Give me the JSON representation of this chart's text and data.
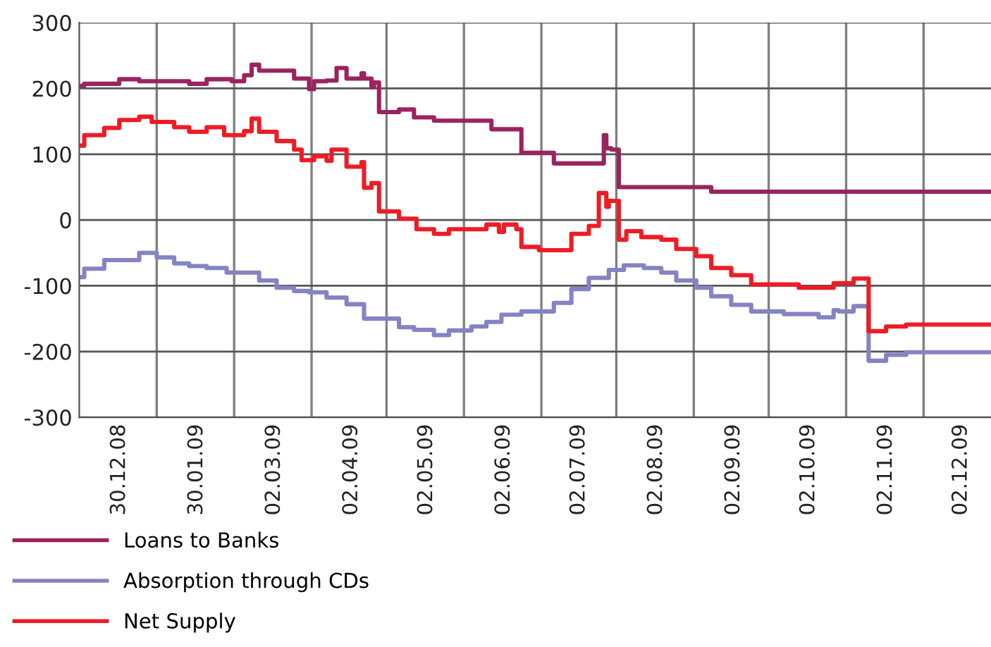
{
  "chart_data": {
    "type": "step",
    "ylim": [
      -300,
      300
    ],
    "yticks": [
      -300,
      -200,
      -100,
      0,
      100,
      200,
      300
    ],
    "xlim": [
      "2008-12-14",
      "2009-12-14"
    ],
    "xticks": [
      {
        "value": "2008-12-30",
        "label": "30.12.08"
      },
      {
        "value": "2009-01-14",
        "label": null
      },
      {
        "value": "2009-01-30",
        "label": "30.01.09"
      },
      {
        "value": "2009-02-14",
        "label": null
      },
      {
        "value": "2009-03-02",
        "label": "02.03.09"
      },
      {
        "value": "2009-03-17",
        "label": null
      },
      {
        "value": "2009-04-02",
        "label": "02.04.09"
      },
      {
        "value": "2009-04-16",
        "label": null
      },
      {
        "value": "2009-05-02",
        "label": "02.05.09"
      },
      {
        "value": "2009-05-17",
        "label": null
      },
      {
        "value": "2009-06-02",
        "label": "02.06.09"
      },
      {
        "value": "2009-06-17",
        "label": null
      },
      {
        "value": "2009-07-02",
        "label": "02.07.09"
      },
      {
        "value": "2009-07-17",
        "label": null
      },
      {
        "value": "2009-08-02",
        "label": "02.08.09"
      },
      {
        "value": "2009-08-17",
        "label": null
      },
      {
        "value": "2009-09-02",
        "label": "02.09.09"
      },
      {
        "value": "2009-09-16",
        "label": null
      },
      {
        "value": "2009-10-02",
        "label": "02.10.09"
      },
      {
        "value": "2009-10-17",
        "label": null
      },
      {
        "value": "2009-11-02",
        "label": "02.11.09"
      },
      {
        "value": "2009-11-17",
        "label": null
      },
      {
        "value": "2009-12-02",
        "label": "02.12.09"
      }
    ],
    "grid": true,
    "legend": "bottom",
    "line_style": "solid",
    "series": [
      {
        "name": "Loans to Banks",
        "color": "#9b2360",
        "x": [
          "2008-12-15",
          "2008-12-16",
          "2008-12-30",
          "2009-01-07",
          "2009-01-27",
          "2009-02-03",
          "2009-02-13",
          "2009-02-18",
          "2009-02-21",
          "2009-02-24",
          "2009-03-10",
          "2009-03-16",
          "2009-03-18",
          "2009-03-23",
          "2009-03-27",
          "2009-03-31",
          "2009-04-06",
          "2009-04-07",
          "2009-04-10",
          "2009-04-11",
          "2009-04-13",
          "2009-04-21",
          "2009-04-27",
          "2009-05-05",
          "2009-05-28",
          "2009-06-09",
          "2009-06-22",
          "2009-07-12",
          "2009-07-13",
          "2009-07-15",
          "2009-07-18",
          "2009-08-24",
          "2009-12-14"
        ],
        "values": [
          204,
          207,
          214,
          211,
          207,
          214,
          211,
          220,
          236,
          227,
          215,
          199,
          211,
          212,
          231,
          215,
          223,
          215,
          202,
          209,
          164,
          168,
          156,
          151,
          138,
          102,
          86,
          129,
          109,
          107,
          50,
          43,
          43
        ]
      },
      {
        "name": "Absorption through CDs",
        "color": "#8583c4",
        "x": [
          "2008-12-15",
          "2008-12-16",
          "2008-12-24",
          "2009-01-07",
          "2009-01-14",
          "2009-01-21",
          "2009-01-27",
          "2009-02-03",
          "2009-02-11",
          "2009-02-24",
          "2009-03-03",
          "2009-03-10",
          "2009-03-16",
          "2009-03-23",
          "2009-03-31",
          "2009-04-07",
          "2009-04-21",
          "2009-04-27",
          "2009-05-05",
          "2009-05-11",
          "2009-05-20",
          "2009-05-26",
          "2009-06-01",
          "2009-06-09",
          "2009-06-22",
          "2009-06-29",
          "2009-07-06",
          "2009-07-14",
          "2009-07-20",
          "2009-07-28",
          "2009-08-04",
          "2009-08-10",
          "2009-08-18",
          "2009-08-24",
          "2009-09-01",
          "2009-09-09",
          "2009-09-22",
          "2009-10-06",
          "2009-10-12",
          "2009-10-14",
          "2009-10-20",
          "2009-10-26",
          "2009-11-02",
          "2009-11-10",
          "2009-12-14"
        ],
        "values": [
          -87,
          -74,
          -61,
          -50,
          -57,
          -66,
          -70,
          -73,
          -80,
          -92,
          -103,
          -108,
          -110,
          -118,
          -128,
          -150,
          -163,
          -167,
          -175,
          -168,
          -162,
          -155,
          -144,
          -139,
          -126,
          -105,
          -88,
          -76,
          -69,
          -73,
          -80,
          -92,
          -103,
          -116,
          -129,
          -139,
          -143,
          -148,
          -137,
          -139,
          -131,
          -214,
          -205,
          -201,
          -201
        ]
      },
      {
        "name": "Net Supply",
        "color": "#ee1c25",
        "x": [
          "2008-12-15",
          "2008-12-16",
          "2008-12-24",
          "2008-12-30",
          "2009-01-07",
          "2009-01-12",
          "2009-01-21",
          "2009-01-27",
          "2009-02-03",
          "2009-02-10",
          "2009-02-18",
          "2009-02-21",
          "2009-02-24",
          "2009-03-03",
          "2009-03-10",
          "2009-03-13",
          "2009-03-18",
          "2009-03-23",
          "2009-03-25",
          "2009-03-31",
          "2009-04-06",
          "2009-04-07",
          "2009-04-10",
          "2009-04-13",
          "2009-04-21",
          "2009-04-28",
          "2009-05-05",
          "2009-05-11",
          "2009-05-26",
          "2009-05-31",
          "2009-06-02",
          "2009-06-07",
          "2009-06-09",
          "2009-06-16",
          "2009-06-29",
          "2009-07-06",
          "2009-07-10",
          "2009-07-13",
          "2009-07-14",
          "2009-07-18",
          "2009-07-21",
          "2009-07-27",
          "2009-08-04",
          "2009-08-10",
          "2009-08-18",
          "2009-08-24",
          "2009-09-01",
          "2009-09-09",
          "2009-09-28",
          "2009-10-12",
          "2009-10-20",
          "2009-10-26",
          "2009-11-02",
          "2009-11-10",
          "2009-12-14"
        ],
        "values": [
          113,
          129,
          140,
          152,
          157,
          149,
          141,
          134,
          141,
          129,
          135,
          154,
          134,
          120,
          107,
          91,
          97,
          90,
          107,
          81,
          88,
          49,
          56,
          13,
          2,
          -14,
          -21,
          -14,
          -7,
          -18,
          -7,
          -14,
          -41,
          -46,
          -21,
          -9,
          41,
          20,
          29,
          -30,
          -17,
          -26,
          -30,
          -44,
          -55,
          -73,
          -84,
          -98,
          -103,
          -96,
          -89,
          -169,
          -162,
          -159,
          -159
        ]
      }
    ]
  }
}
